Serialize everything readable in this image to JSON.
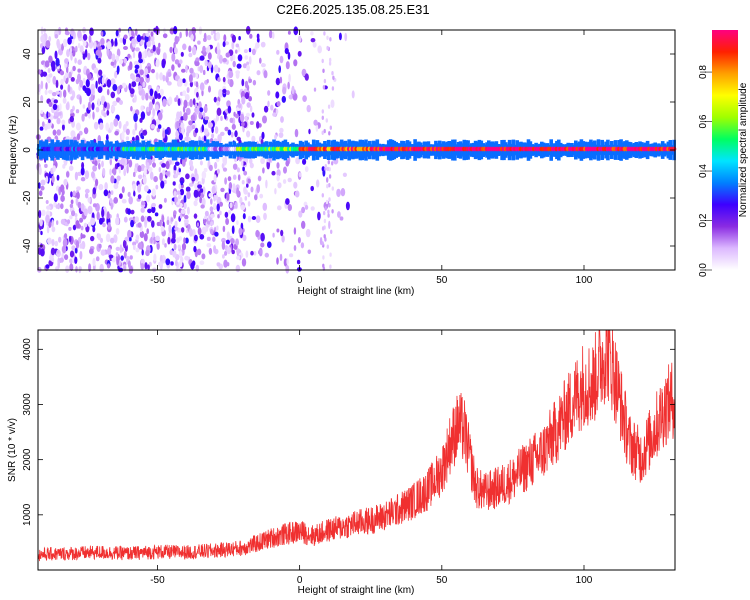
{
  "chart_data": [
    {
      "type": "heatmap",
      "title": "C2E6.2025.135.08.25.E31",
      "xlabel": "Height of straight line (km)",
      "ylabel": "Frequency (Hz)",
      "xlim": [
        -92,
        132
      ],
      "ylim": [
        -50,
        50
      ],
      "xticks": [
        "-50",
        "0",
        "50",
        "100"
      ],
      "yticks": [
        "40",
        "20",
        "0",
        "-20",
        "-40"
      ],
      "colorbar": {
        "label": "Normalized spectral amplitude",
        "range": [
          0,
          0.97
        ],
        "ticks": [
          "0.0",
          "0.2",
          "0.4",
          "0.6",
          "0.8"
        ],
        "colors": [
          "#ffffff",
          "#dcb8ff",
          "#8a2be2",
          "#3d00ff",
          "#0080ff",
          "#00e5ff",
          "#00ff60",
          "#a0ff00",
          "#ffff00",
          "#ffa000",
          "#ff2000",
          "#ff0080"
        ]
      },
      "band": [
        {
          "x0": -92,
          "x1": -62,
          "level": 0.28
        },
        {
          "x0": -62,
          "x1": -32,
          "level": 0.5
        },
        {
          "x0": -32,
          "x1": -22,
          "level": 0.12
        },
        {
          "x0": -22,
          "x1": 0,
          "level": 0.55
        },
        {
          "x0": 0,
          "x1": 25,
          "level": 0.85
        },
        {
          "x0": 25,
          "x1": 132,
          "level": 0.95
        }
      ],
      "noise": {
        "x0": -92,
        "x1": -18,
        "fade_x1": 20
      }
    },
    {
      "type": "line",
      "xlabel": "Height of straight line (km)",
      "ylabel": "SNR (10 * v/v)",
      "xlim": [
        -92,
        132
      ],
      "ylim": [
        0,
        4350
      ],
      "xticks": [
        "-50",
        "0",
        "50",
        "100"
      ],
      "yticks": [
        "1000",
        "2000",
        "3000",
        "4000"
      ],
      "color": "#f03030",
      "x": [
        -92,
        -80,
        -70,
        -60,
        -50,
        -40,
        -30,
        -20,
        -15,
        -10,
        -5,
        0,
        5,
        10,
        15,
        20,
        25,
        30,
        35,
        40,
        45,
        50,
        53,
        56,
        58,
        60,
        62,
        65,
        70,
        75,
        80,
        85,
        90,
        95,
        100,
        103,
        105,
        108,
        110,
        113,
        116,
        120,
        124,
        128,
        132
      ],
      "y": [
        280,
        300,
        320,
        300,
        330,
        320,
        350,
        400,
        480,
        580,
        650,
        700,
        620,
        720,
        780,
        850,
        900,
        980,
        1100,
        1250,
        1450,
        1800,
        2300,
        2650,
        2500,
        2000,
        1500,
        1400,
        1500,
        1650,
        1900,
        2100,
        2500,
        2950,
        3400,
        3350,
        3650,
        4000,
        3700,
        3000,
        2300,
        2050,
        2450,
        2900,
        3150
      ]
    }
  ]
}
